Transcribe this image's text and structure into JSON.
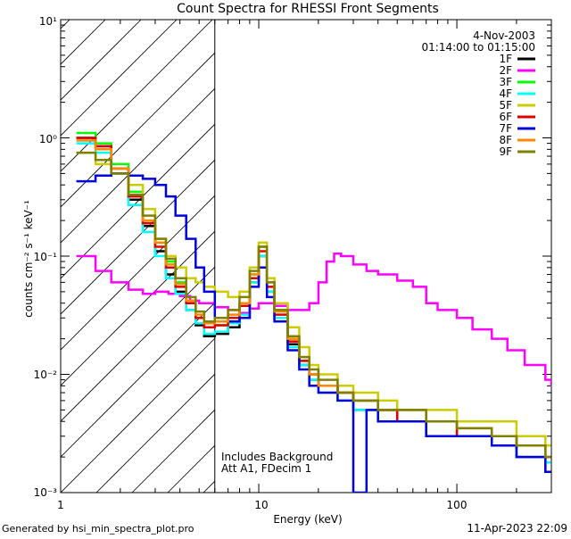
{
  "chart_data": {
    "type": "line",
    "title": "Count Spectra for RHESSI Front Segments",
    "xlabel": "Energy (keV)",
    "ylabel": "counts cm⁻² s⁻¹ keV⁻¹",
    "xscale": "log",
    "yscale": "log",
    "xlim": [
      1,
      300
    ],
    "ylim": [
      0.001,
      10
    ],
    "x_tick_labels": [
      "1",
      "10",
      "100"
    ],
    "y_tick_labels": [
      "10⁻³",
      "10⁻²",
      "10⁻¹",
      "10⁰",
      "10¹"
    ],
    "date": "4-Nov-2003",
    "time_range": "01:14:00 to 01:15:00",
    "annotation_lines": [
      "Includes Background",
      "Att A1, FDecim 1"
    ],
    "footer_left": "Generated by hsi_min_spectra_plot.pro",
    "footer_right": "11-Apr-2023 22:09",
    "shaded_region": {
      "x_from": 1,
      "x_to": 6,
      "style": "diagonal-hatch",
      "boundary_line_at": 6
    },
    "series": [
      {
        "name": "1F",
        "color": "#000000",
        "points": [
          [
            1.2,
            1.0
          ],
          [
            1.5,
            0.85
          ],
          [
            1.8,
            0.55
          ],
          [
            2.2,
            0.3
          ],
          [
            2.6,
            0.18
          ],
          [
            3.0,
            0.11
          ],
          [
            3.4,
            0.07
          ],
          [
            3.8,
            0.05
          ],
          [
            4.3,
            0.035
          ],
          [
            4.8,
            0.026
          ],
          [
            5.3,
            0.021
          ],
          [
            6,
            0.022
          ],
          [
            7,
            0.025
          ],
          [
            8,
            0.03
          ],
          [
            9,
            0.06
          ],
          [
            10,
            0.1
          ],
          [
            11,
            0.05
          ],
          [
            12,
            0.03
          ],
          [
            14,
            0.018
          ],
          [
            16,
            0.012
          ],
          [
            18,
            0.009
          ],
          [
            20,
            0.008
          ],
          [
            25,
            0.007
          ],
          [
            30,
            0.005
          ],
          [
            40,
            0.005
          ],
          [
            50,
            0.004
          ],
          [
            70,
            0.003
          ],
          [
            100,
            0.003
          ],
          [
            150,
            0.003
          ],
          [
            200,
            0.002
          ],
          [
            280,
            0.0015
          ]
        ]
      },
      {
        "name": "2F",
        "color": "#ff00ff",
        "points": [
          [
            1.2,
            0.1
          ],
          [
            1.5,
            0.075
          ],
          [
            1.8,
            0.06
          ],
          [
            2.2,
            0.052
          ],
          [
            2.6,
            0.048
          ],
          [
            3.0,
            0.05
          ],
          [
            3.5,
            0.048
          ],
          [
            4,
            0.046
          ],
          [
            4.5,
            0.042
          ],
          [
            5,
            0.04
          ],
          [
            6,
            0.037
          ],
          [
            7,
            0.035
          ],
          [
            8,
            0.033
          ],
          [
            9,
            0.036
          ],
          [
            10,
            0.04
          ],
          [
            12,
            0.038
          ],
          [
            14,
            0.035
          ],
          [
            16,
            0.035
          ],
          [
            18,
            0.04
          ],
          [
            20,
            0.06
          ],
          [
            22,
            0.09
          ],
          [
            24,
            0.105
          ],
          [
            26,
            0.1
          ],
          [
            30,
            0.085
          ],
          [
            35,
            0.075
          ],
          [
            40,
            0.07
          ],
          [
            50,
            0.062
          ],
          [
            60,
            0.055
          ],
          [
            70,
            0.04
          ],
          [
            80,
            0.035
          ],
          [
            100,
            0.03
          ],
          [
            120,
            0.024
          ],
          [
            150,
            0.02
          ],
          [
            180,
            0.016
          ],
          [
            220,
            0.012
          ],
          [
            280,
            0.009
          ],
          [
            300,
            0.008
          ]
        ]
      },
      {
        "name": "3F",
        "color": "#00ff00",
        "points": [
          [
            1.2,
            1.1
          ],
          [
            1.5,
            0.9
          ],
          [
            1.8,
            0.6
          ],
          [
            2.2,
            0.35
          ],
          [
            2.6,
            0.2
          ],
          [
            3.0,
            0.13
          ],
          [
            3.4,
            0.09
          ],
          [
            3.8,
            0.06
          ],
          [
            4.3,
            0.04
          ],
          [
            4.8,
            0.03
          ],
          [
            5.3,
            0.025
          ],
          [
            6,
            0.026
          ],
          [
            7,
            0.03
          ],
          [
            8,
            0.04
          ],
          [
            9,
            0.07
          ],
          [
            10,
            0.12
          ],
          [
            11,
            0.06
          ],
          [
            12,
            0.035
          ],
          [
            14,
            0.02
          ],
          [
            16,
            0.013
          ],
          [
            18,
            0.01
          ],
          [
            20,
            0.008
          ],
          [
            25,
            0.007
          ],
          [
            30,
            0.006
          ],
          [
            40,
            0.005
          ],
          [
            50,
            0.005
          ],
          [
            70,
            0.004
          ],
          [
            100,
            0.003
          ],
          [
            150,
            0.003
          ],
          [
            200,
            0.0025
          ],
          [
            280,
            0.002
          ]
        ]
      },
      {
        "name": "4F",
        "color": "#00ffff",
        "points": [
          [
            1.2,
            0.9
          ],
          [
            1.5,
            0.75
          ],
          [
            1.8,
            0.5
          ],
          [
            2.2,
            0.27
          ],
          [
            2.6,
            0.16
          ],
          [
            3.0,
            0.1
          ],
          [
            3.4,
            0.065
          ],
          [
            3.8,
            0.048
          ],
          [
            4.3,
            0.035
          ],
          [
            4.8,
            0.027
          ],
          [
            5.3,
            0.022
          ],
          [
            6,
            0.023
          ],
          [
            7,
            0.027
          ],
          [
            8,
            0.032
          ],
          [
            9,
            0.06
          ],
          [
            10,
            0.1
          ],
          [
            11,
            0.05
          ],
          [
            12,
            0.03
          ],
          [
            14,
            0.017
          ],
          [
            16,
            0.012
          ],
          [
            18,
            0.009
          ],
          [
            20,
            0.007
          ],
          [
            25,
            0.006
          ],
          [
            30,
            0.005
          ],
          [
            40,
            0.004
          ],
          [
            50,
            0.004
          ],
          [
            70,
            0.003
          ],
          [
            100,
            0.003
          ],
          [
            150,
            0.0025
          ],
          [
            200,
            0.002
          ],
          [
            280,
            0.0018
          ]
        ]
      },
      {
        "name": "5F",
        "color": "#cccc00",
        "points": [
          [
            1.2,
            0.75
          ],
          [
            1.5,
            0.6
          ],
          [
            1.8,
            0.5
          ],
          [
            2.2,
            0.4
          ],
          [
            2.6,
            0.25
          ],
          [
            3.0,
            0.14
          ],
          [
            3.4,
            0.1
          ],
          [
            3.8,
            0.08
          ],
          [
            4.3,
            0.065
          ],
          [
            4.8,
            0.06
          ],
          [
            5.3,
            0.055
          ],
          [
            6,
            0.05
          ],
          [
            7,
            0.045
          ],
          [
            8,
            0.05
          ],
          [
            9,
            0.08
          ],
          [
            10,
            0.13
          ],
          [
            11,
            0.065
          ],
          [
            12,
            0.04
          ],
          [
            14,
            0.025
          ],
          [
            16,
            0.017
          ],
          [
            18,
            0.012
          ],
          [
            20,
            0.01
          ],
          [
            25,
            0.008
          ],
          [
            30,
            0.007
          ],
          [
            40,
            0.006
          ],
          [
            50,
            0.005
          ],
          [
            70,
            0.005
          ],
          [
            100,
            0.004
          ],
          [
            150,
            0.004
          ],
          [
            200,
            0.003
          ],
          [
            280,
            0.0025
          ]
        ]
      },
      {
        "name": "6F",
        "color": "#dd0000",
        "points": [
          [
            1.2,
            1.0
          ],
          [
            1.5,
            0.85
          ],
          [
            1.8,
            0.55
          ],
          [
            2.2,
            0.32
          ],
          [
            2.6,
            0.19
          ],
          [
            3.0,
            0.12
          ],
          [
            3.4,
            0.08
          ],
          [
            3.8,
            0.055
          ],
          [
            4.3,
            0.04
          ],
          [
            4.8,
            0.03
          ],
          [
            5.3,
            0.025
          ],
          [
            6,
            0.026
          ],
          [
            7,
            0.03
          ],
          [
            8,
            0.038
          ],
          [
            9,
            0.065
          ],
          [
            10,
            0.11
          ],
          [
            11,
            0.055
          ],
          [
            12,
            0.032
          ],
          [
            14,
            0.019
          ],
          [
            16,
            0.013
          ],
          [
            18,
            0.01
          ],
          [
            20,
            0.008
          ],
          [
            25,
            0.007
          ],
          [
            30,
            0.006
          ],
          [
            40,
            0.005
          ],
          [
            50,
            0.004
          ],
          [
            70,
            0.004
          ],
          [
            100,
            0.003
          ],
          [
            150,
            0.003
          ],
          [
            200,
            0.0025
          ],
          [
            280,
            0.002
          ]
        ]
      },
      {
        "name": "7F",
        "color": "#0000dd",
        "points": [
          [
            1.2,
            0.43
          ],
          [
            1.5,
            0.48
          ],
          [
            1.8,
            0.5
          ],
          [
            2.2,
            0.48
          ],
          [
            2.6,
            0.45
          ],
          [
            3.0,
            0.4
          ],
          [
            3.4,
            0.32
          ],
          [
            3.8,
            0.22
          ],
          [
            4.3,
            0.14
          ],
          [
            4.8,
            0.08
          ],
          [
            5.3,
            0.05
          ],
          [
            6,
            0.03
          ],
          [
            7,
            0.028
          ],
          [
            8,
            0.03
          ],
          [
            9,
            0.055
          ],
          [
            10,
            0.08
          ],
          [
            11,
            0.045
          ],
          [
            12,
            0.028
          ],
          [
            14,
            0.016
          ],
          [
            16,
            0.011
          ],
          [
            18,
            0.008
          ],
          [
            20,
            0.007
          ],
          [
            25,
            0.006
          ],
          [
            30,
            0.001
          ],
          [
            35,
            0.005
          ],
          [
            40,
            0.004
          ],
          [
            50,
            0.004
          ],
          [
            70,
            0.003
          ],
          [
            100,
            0.003
          ],
          [
            150,
            0.0025
          ],
          [
            200,
            0.002
          ],
          [
            280,
            0.0015
          ]
        ]
      },
      {
        "name": "8F",
        "color": "#ff8800",
        "points": [
          [
            1.2,
            0.95
          ],
          [
            1.5,
            0.8
          ],
          [
            1.8,
            0.55
          ],
          [
            2.2,
            0.33
          ],
          [
            2.6,
            0.2
          ],
          [
            3.0,
            0.13
          ],
          [
            3.4,
            0.085
          ],
          [
            3.8,
            0.058
          ],
          [
            4.3,
            0.042
          ],
          [
            4.8,
            0.032
          ],
          [
            5.3,
            0.027
          ],
          [
            6,
            0.028
          ],
          [
            7,
            0.032
          ],
          [
            8,
            0.04
          ],
          [
            9,
            0.07
          ],
          [
            10,
            0.12
          ],
          [
            11,
            0.06
          ],
          [
            12,
            0.034
          ],
          [
            14,
            0.02
          ],
          [
            16,
            0.014
          ],
          [
            18,
            0.01
          ],
          [
            20,
            0.008
          ],
          [
            25,
            0.007
          ],
          [
            30,
            0.006
          ],
          [
            40,
            0.005
          ],
          [
            50,
            0.005
          ],
          [
            70,
            0.004
          ],
          [
            100,
            0.0035
          ],
          [
            150,
            0.003
          ],
          [
            200,
            0.0025
          ],
          [
            280,
            0.002
          ]
        ]
      },
      {
        "name": "9F",
        "color": "#808000",
        "points": [
          [
            1.2,
            0.75
          ],
          [
            1.5,
            0.65
          ],
          [
            1.8,
            0.5
          ],
          [
            2.2,
            0.33
          ],
          [
            2.6,
            0.22
          ],
          [
            3.0,
            0.14
          ],
          [
            3.4,
            0.095
          ],
          [
            3.8,
            0.065
          ],
          [
            4.3,
            0.045
          ],
          [
            4.8,
            0.034
          ],
          [
            5.3,
            0.028
          ],
          [
            6,
            0.03
          ],
          [
            7,
            0.035
          ],
          [
            8,
            0.045
          ],
          [
            9,
            0.075
          ],
          [
            10,
            0.12
          ],
          [
            11,
            0.06
          ],
          [
            12,
            0.035
          ],
          [
            14,
            0.021
          ],
          [
            16,
            0.014
          ],
          [
            18,
            0.011
          ],
          [
            20,
            0.009
          ],
          [
            25,
            0.007
          ],
          [
            30,
            0.006
          ],
          [
            40,
            0.005
          ],
          [
            50,
            0.005
          ],
          [
            70,
            0.004
          ],
          [
            100,
            0.0035
          ],
          [
            150,
            0.003
          ],
          [
            200,
            0.0025
          ],
          [
            280,
            0.002
          ]
        ]
      }
    ]
  }
}
